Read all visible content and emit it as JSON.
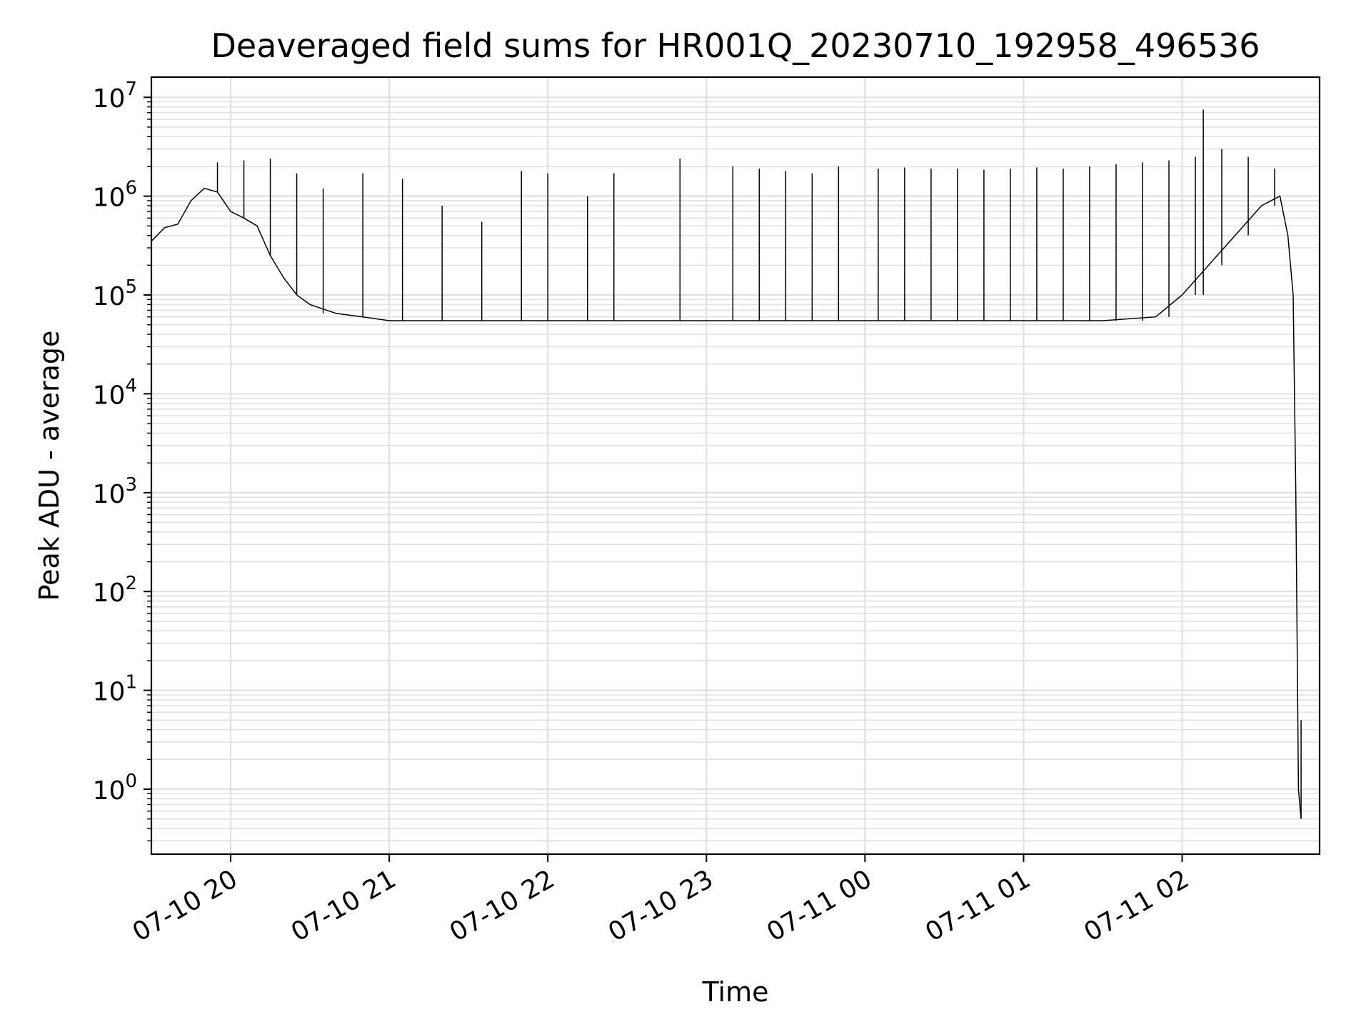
{
  "chart_data": {
    "type": "line",
    "title": "Deaveraged field sums for HR001Q_20230710_192958_496536",
    "xlabel": "Time",
    "ylabel": "Peak ADU - average",
    "y_scale": "log",
    "ylim": [
      0.22,
      16000000
    ],
    "xlim": [
      "2023-07-10T19:30:00",
      "2023-07-11T02:52:00"
    ],
    "grid": true,
    "legend": "none",
    "line_color": "#000000",
    "grid_color": "#e0e0e0",
    "x_ticks": [
      {
        "label": "07-10 20",
        "time": "2023-07-10T20:00:00"
      },
      {
        "label": "07-10 21",
        "time": "2023-07-10T21:00:00"
      },
      {
        "label": "07-10 22",
        "time": "2023-07-10T22:00:00"
      },
      {
        "label": "07-10 23",
        "time": "2023-07-10T23:00:00"
      },
      {
        "label": "07-11 00",
        "time": "2023-07-11T00:00:00"
      },
      {
        "label": "07-11 01",
        "time": "2023-07-11T01:00:00"
      },
      {
        "label": "07-11 02",
        "time": "2023-07-11T02:00:00"
      }
    ],
    "y_ticks": [
      {
        "base": "10",
        "exp": "0",
        "value": 1
      },
      {
        "base": "10",
        "exp": "1",
        "value": 10
      },
      {
        "base": "10",
        "exp": "2",
        "value": 100
      },
      {
        "base": "10",
        "exp": "3",
        "value": 1000
      },
      {
        "base": "10",
        "exp": "4",
        "value": 10000
      },
      {
        "base": "10",
        "exp": "5",
        "value": 100000
      },
      {
        "base": "10",
        "exp": "6",
        "value": 1000000
      },
      {
        "base": "10",
        "exp": "7",
        "value": 10000000
      }
    ],
    "series": [
      {
        "points": [
          [
            "2023-07-10T19:30:00",
            350000
          ],
          [
            "2023-07-10T19:35:00",
            480000
          ],
          [
            "2023-07-10T19:40:00",
            520000
          ],
          [
            "2023-07-10T19:45:00",
            900000
          ],
          [
            "2023-07-10T19:50:00",
            1200000
          ],
          [
            "2023-07-10T19:55:00",
            1100000
          ],
          [
            "2023-07-10T20:00:00",
            700000
          ],
          [
            "2023-07-10T20:05:00",
            600000
          ],
          [
            "2023-07-10T20:10:00",
            500000
          ],
          [
            "2023-07-10T20:15:00",
            250000
          ],
          [
            "2023-07-10T20:20:00",
            150000
          ],
          [
            "2023-07-10T20:25:00",
            100000
          ],
          [
            "2023-07-10T20:30:00",
            80000
          ],
          [
            "2023-07-10T20:40:00",
            65000
          ],
          [
            "2023-07-10T20:50:00",
            60000
          ],
          [
            "2023-07-10T21:00:00",
            55000
          ],
          [
            "2023-07-10T21:30:00",
            55000
          ],
          [
            "2023-07-10T22:00:00",
            55000
          ],
          [
            "2023-07-10T22:30:00",
            55000
          ],
          [
            "2023-07-10T23:00:00",
            55000
          ],
          [
            "2023-07-10T23:30:00",
            55000
          ],
          [
            "2023-07-11T00:00:00",
            55000
          ],
          [
            "2023-07-11T00:30:00",
            55000
          ],
          [
            "2023-07-11T01:00:00",
            55000
          ],
          [
            "2023-07-11T01:30:00",
            55000
          ],
          [
            "2023-07-11T01:50:00",
            60000
          ],
          [
            "2023-07-11T02:00:00",
            100000
          ],
          [
            "2023-07-11T02:10:00",
            200000
          ],
          [
            "2023-07-11T02:20:00",
            400000
          ],
          [
            "2023-07-11T02:30:00",
            800000
          ],
          [
            "2023-07-11T02:37:00",
            1000000
          ],
          [
            "2023-07-11T02:40:00",
            400000
          ],
          [
            "2023-07-11T02:42:00",
            100000
          ],
          [
            "2023-07-11T02:43:00",
            1000
          ],
          [
            "2023-07-11T02:44:00",
            1
          ],
          [
            "2023-07-11T02:45:00",
            0.5
          ]
        ],
        "spikes": [
          [
            "2023-07-10T19:55:00",
            2200000
          ],
          [
            "2023-07-10T20:05:00",
            2300000
          ],
          [
            "2023-07-10T20:15:00",
            2400000
          ],
          [
            "2023-07-10T20:25:00",
            1700000
          ],
          [
            "2023-07-10T20:35:00",
            1200000
          ],
          [
            "2023-07-10T20:50:00",
            1700000
          ],
          [
            "2023-07-10T21:05:00",
            1500000
          ],
          [
            "2023-07-10T21:20:00",
            800000
          ],
          [
            "2023-07-10T21:35:00",
            550000
          ],
          [
            "2023-07-10T21:50:00",
            1800000
          ],
          [
            "2023-07-10T22:00:00",
            1700000
          ],
          [
            "2023-07-10T22:15:00",
            1000000
          ],
          [
            "2023-07-10T22:25:00",
            1700000
          ],
          [
            "2023-07-10T22:50:00",
            2400000
          ],
          [
            "2023-07-10T23:10:00",
            2000000
          ],
          [
            "2023-07-10T23:20:00",
            1900000
          ],
          [
            "2023-07-10T23:30:00",
            1800000
          ],
          [
            "2023-07-10T23:40:00",
            1700000
          ],
          [
            "2023-07-10T23:50:00",
            2000000
          ],
          [
            "2023-07-11T00:05:00",
            1900000
          ],
          [
            "2023-07-11T00:15:00",
            1950000
          ],
          [
            "2023-07-11T00:25:00",
            1900000
          ],
          [
            "2023-07-11T00:35:00",
            1900000
          ],
          [
            "2023-07-11T00:45:00",
            1850000
          ],
          [
            "2023-07-11T00:55:00",
            1900000
          ],
          [
            "2023-07-11T01:05:00",
            1950000
          ],
          [
            "2023-07-11T01:15:00",
            1900000
          ],
          [
            "2023-07-11T01:25:00",
            2000000
          ],
          [
            "2023-07-11T01:35:00",
            2100000
          ],
          [
            "2023-07-11T01:45:00",
            2200000
          ],
          [
            "2023-07-11T01:55:00",
            2300000
          ],
          [
            "2023-07-11T02:05:00",
            2500000
          ],
          [
            "2023-07-11T02:08:00",
            7500000
          ],
          [
            "2023-07-11T02:15:00",
            3000000
          ],
          [
            "2023-07-11T02:25:00",
            2500000
          ],
          [
            "2023-07-11T02:35:00",
            1900000
          ],
          [
            "2023-07-11T02:45:00",
            5
          ]
        ]
      }
    ]
  }
}
